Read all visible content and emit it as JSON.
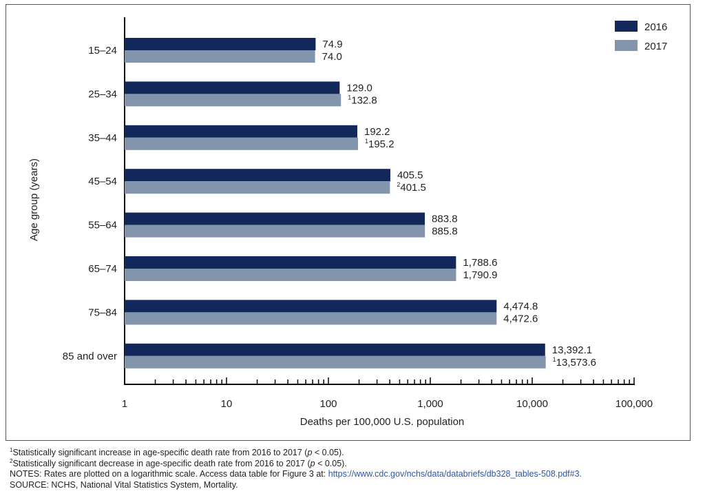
{
  "chart_data": {
    "type": "bar",
    "orientation": "horizontal",
    "title": "",
    "xlabel": "Deaths per 100,000 U.S. population",
    "ylabel": "Age group (years)",
    "xscale": "log",
    "xlim": [
      1,
      100000
    ],
    "xticks": [
      "1",
      "10",
      "100",
      "1,000",
      "10,000",
      "100,000"
    ],
    "grid": false,
    "legend_placement": "top-right",
    "categories": [
      "15–24",
      "25–34",
      "35–44",
      "45–54",
      "55–64",
      "65–74",
      "75–84",
      "85 and over"
    ],
    "series": [
      {
        "name": "2016",
        "color": "#13285a",
        "values": [
          74.9,
          129.0,
          192.2,
          405.5,
          883.8,
          1788.6,
          4474.8,
          13392.1
        ],
        "labels": [
          "74.9",
          "129.0",
          "192.2",
          "405.5",
          "883.8",
          "1,788.6",
          "4,474.8",
          "13,392.1"
        ],
        "marks": [
          "",
          "",
          "",
          "",
          "",
          "",
          "",
          ""
        ]
      },
      {
        "name": "2017",
        "color": "#8394ad",
        "values": [
          74.0,
          132.8,
          195.2,
          401.5,
          885.8,
          1790.9,
          4472.6,
          13573.6
        ],
        "labels": [
          "74.0",
          "132.8",
          "195.2",
          "401.5",
          "885.8",
          "1,790.9",
          "4,472.6",
          "13,573.6"
        ],
        "marks": [
          "",
          "1",
          "1",
          "2",
          "",
          "",
          "",
          "1"
        ]
      }
    ]
  },
  "notes": {
    "fn1_mark": "1",
    "fn1_a": "Statistically significant increase in age-specific death rate from 2016 to 2017 (",
    "fn1_p": "p",
    "fn1_b": " < 0.05).",
    "fn2_mark": "2",
    "fn2_a": "Statistically significant decrease in age-specific death rate from 2016 to 2017 (",
    "fn2_p": "p",
    "fn2_b": " < 0.05).",
    "notes_text": "NOTES: Rates are plotted on a logarithmic scale. Access data table for Figure 3 at: ",
    "notes_link": "https://www.cdc.gov/nchs/data/databriefs/db328_tables-508.pdf#3.",
    "source": "SOURCE: NCHS, National Vital Statistics System, Mortality."
  }
}
